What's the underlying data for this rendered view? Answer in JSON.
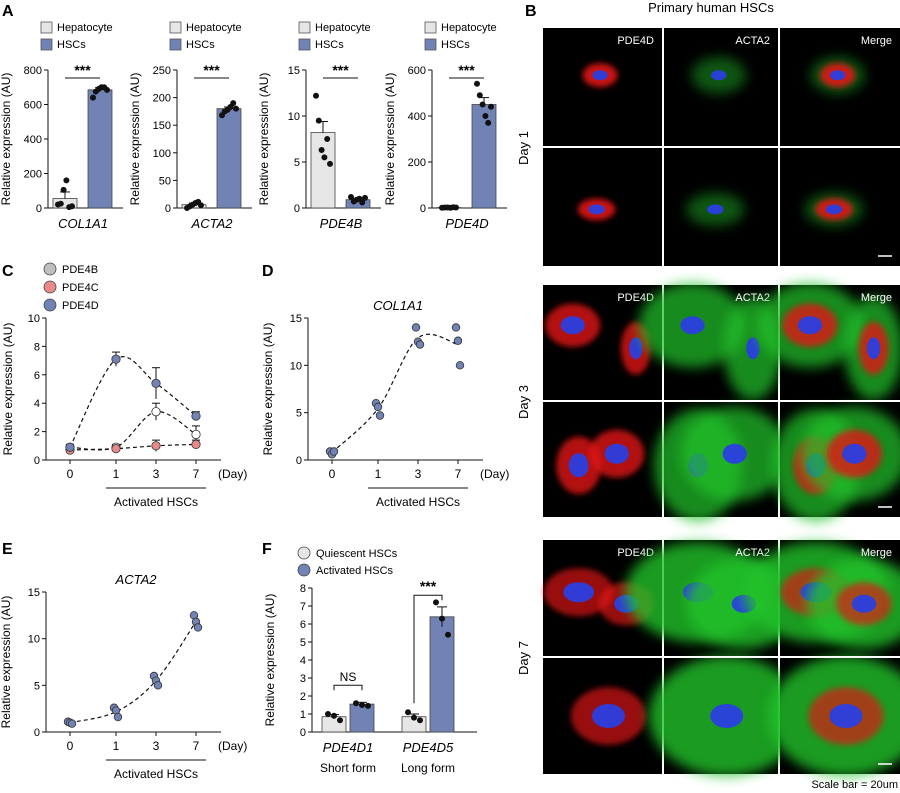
{
  "panel_letters": [
    "A",
    "B",
    "C",
    "D",
    "E",
    "F"
  ],
  "panel_b": {
    "title": "Primary human HSCs",
    "channels": [
      "PDE4D",
      "ACTA2",
      "Merge"
    ],
    "days": [
      "Day 1",
      "Day 3",
      "Day 7"
    ],
    "scale_note": "Scale bar = 20um"
  },
  "chart_data": [
    {
      "id": "A1",
      "type": "bar",
      "legend": [
        "Hepatocyte",
        "HSCs"
      ],
      "categories": [
        "Hepatocyte",
        "HSCs"
      ],
      "values": [
        55,
        685
      ],
      "errors": [
        38,
        12
      ],
      "points": [
        [
          20,
          25,
          105,
          160,
          5,
          10
        ],
        [
          640,
          675,
          690,
          700,
          700,
          685
        ]
      ],
      "xlabel": "COL1A1",
      "ylabel": "Relative expression (AU)",
      "ylim": [
        0,
        800
      ],
      "yticks": [
        0,
        200,
        400,
        600,
        800
      ],
      "significance": "***"
    },
    {
      "id": "A2",
      "type": "bar",
      "legend": [
        "Hepatocyte",
        "HSCs"
      ],
      "categories": [
        "Hepatocyte",
        "HSCs"
      ],
      "values": [
        6,
        180
      ],
      "errors": [
        3,
        3
      ],
      "points": [
        [
          0,
          3,
          6,
          9,
          11,
          5
        ],
        [
          168,
          175,
          178,
          183,
          190,
          180
        ]
      ],
      "xlabel": "ACTA2",
      "ylabel": "Relative expression (AU)",
      "ylim": [
        0,
        250
      ],
      "yticks": [
        0,
        50,
        100,
        150,
        200,
        250
      ],
      "significance": "***"
    },
    {
      "id": "A3",
      "type": "bar",
      "legend": [
        "Hepatocyte",
        "HSCs"
      ],
      "categories": [
        "Hepatocyte",
        "HSCs"
      ],
      "values": [
        8.2,
        0.9
      ],
      "errors": [
        1.2,
        0.15
      ],
      "points": [
        [
          12.2,
          9.5,
          6.3,
          5.5,
          7.5,
          4.8
        ],
        [
          1.2,
          0.7,
          0.9,
          1.0,
          0.6,
          1.1
        ]
      ],
      "xlabel": "PDE4B",
      "ylabel": "Relative expression (AU)",
      "ylim": [
        0,
        15
      ],
      "yticks": [
        0,
        5,
        10,
        15
      ],
      "significance": "***"
    },
    {
      "id": "A4",
      "type": "bar",
      "legend": [
        "Hepatocyte",
        "HSCs"
      ],
      "categories": [
        "Hepatocyte",
        "HSCs"
      ],
      "values": [
        2,
        450
      ],
      "errors": [
        1,
        30
      ],
      "points": [
        [
          1,
          2,
          2,
          1,
          3,
          2
        ],
        [
          540,
          490,
          450,
          400,
          370,
          440
        ]
      ],
      "xlabel": "PDE4D",
      "ylabel": "Relative expression (AU)",
      "ylim": [
        0,
        600
      ],
      "yticks": [
        0,
        200,
        400,
        600
      ],
      "significance": "***"
    },
    {
      "id": "C",
      "type": "line",
      "x": [
        "0",
        "1",
        "3",
        "7"
      ],
      "xunit": "(Day)",
      "group_label": "Activated HSCs",
      "series": [
        {
          "name": "PDE4B",
          "values": [
            0.9,
            0.9,
            3.4,
            1.8
          ],
          "errors": [
            0.2,
            0.2,
            0.6,
            0.6
          ]
        },
        {
          "name": "PDE4C",
          "values": [
            0.7,
            0.8,
            1.0,
            1.1
          ],
          "errors": [
            0.1,
            0.1,
            0.4,
            0.3
          ]
        },
        {
          "name": "PDE4D",
          "values": [
            0.9,
            7.1,
            5.4,
            3.1
          ],
          "errors": [
            0.2,
            0.5,
            1.1,
            0.3
          ]
        }
      ],
      "ylabel": "Relative expression (AU)",
      "ylim": [
        0,
        10
      ],
      "yticks": [
        0,
        2,
        4,
        6,
        8,
        10
      ]
    },
    {
      "id": "D",
      "type": "scatter",
      "title": "COL1A1",
      "x": [
        "0",
        "1",
        "3",
        "7"
      ],
      "xunit": "(Day)",
      "group_label": "Activated HSCs",
      "points": [
        [
          0.9,
          0.6,
          0.9
        ],
        [
          6.0,
          5.6,
          4.7
        ],
        [
          14.0,
          12.5,
          12.2
        ],
        [
          14.0,
          12.6,
          10.0
        ]
      ],
      "ylabel": "Relative expression (AU)",
      "ylim": [
        0,
        15
      ],
      "yticks": [
        0,
        5,
        10,
        15
      ]
    },
    {
      "id": "E",
      "type": "scatter",
      "title": "ACTA2",
      "x": [
        "0",
        "1",
        "3",
        "7"
      ],
      "xunit": "(Day)",
      "group_label": "Activated HSCs",
      "points": [
        [
          1.1,
          1.0,
          0.9
        ],
        [
          2.6,
          2.3,
          1.6
        ],
        [
          6.0,
          5.5,
          5.0
        ],
        [
          12.5,
          11.8,
          11.2
        ]
      ],
      "ylabel": "Relative expression (AU)",
      "ylim": [
        0,
        15
      ],
      "yticks": [
        0,
        5,
        10,
        15
      ]
    },
    {
      "id": "F",
      "type": "bar",
      "legend": [
        "Quiescent HSCs",
        "Activated HSCs"
      ],
      "categories": [
        "PDE4D1",
        "PDE4D5"
      ],
      "group_sublabels": [
        "Short form",
        "Long form"
      ],
      "series": [
        {
          "name": "Quiescent HSCs",
          "values": [
            0.85,
            0.85
          ],
          "errors": [
            0.12,
            0.15
          ],
          "points": [
            [
              1.0,
              0.9,
              0.65
            ],
            [
              1.1,
              0.8,
              0.65
            ]
          ]
        },
        {
          "name": "Activated HSCs",
          "values": [
            1.55,
            6.4
          ],
          "errors": [
            0.1,
            0.55
          ],
          "points": [
            [
              1.6,
              1.5,
              1.45
            ],
            [
              7.2,
              6.3,
              5.4
            ]
          ]
        }
      ],
      "significance": [
        "NS",
        "***"
      ],
      "ylabel": "Relative expression (AU)",
      "ylim": [
        0,
        8
      ],
      "yticks": [
        0,
        1,
        2,
        3,
        4,
        5,
        6,
        7,
        8
      ]
    }
  ],
  "colors": {
    "hepatocyte": "#e6e6e6",
    "hsc": "#7183b5",
    "pde4b": "#bfbfbf",
    "pde4c": "#e88a8a",
    "pde4d": "#7183b5",
    "quiescent": "#e6e6e6",
    "activated": "#7183b5"
  }
}
